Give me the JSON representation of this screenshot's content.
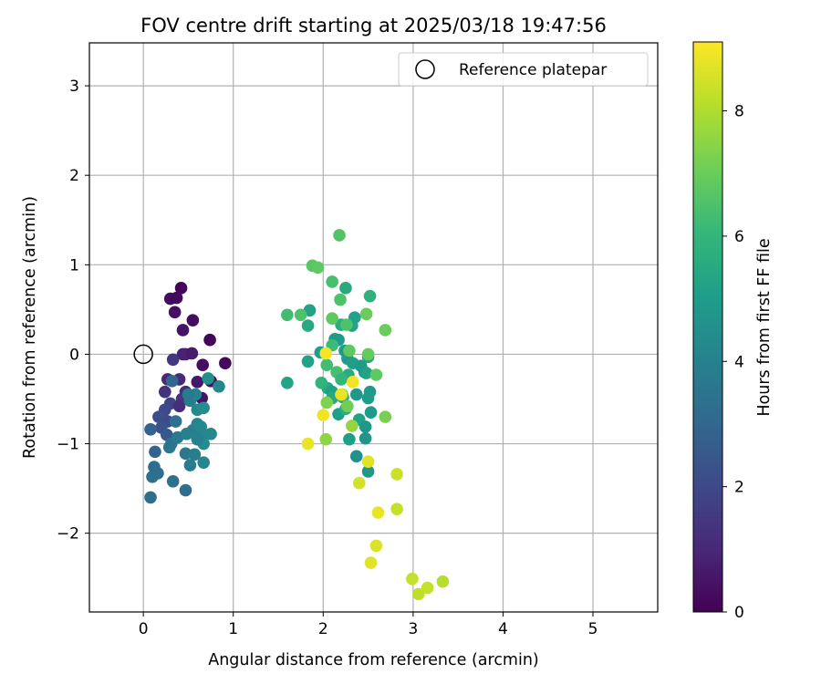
{
  "chart_data": {
    "type": "scatter",
    "title": "FOV centre drift starting at 2025/03/18 19:47:56",
    "xlabel": "Angular distance from reference (arcmin)",
    "ylabel": "Rotation from reference (arcmin)",
    "xlim": [
      -0.6,
      5.72
    ],
    "ylim": [
      -2.88,
      3.48
    ],
    "xticks": [
      0,
      1,
      2,
      3,
      4,
      5
    ],
    "yticks": [
      -2,
      -1,
      0,
      1,
      2,
      3
    ],
    "grid": true,
    "legend": {
      "position": "top-right",
      "label": "Reference platepar"
    },
    "reference_point": {
      "x": 0,
      "y": 0
    },
    "colorbar": {
      "label": "Hours from first FF file",
      "colormap": "viridis",
      "range": [
        0,
        9.1
      ],
      "ticks": [
        0,
        2,
        4,
        6,
        8
      ],
      "colors": [
        "#440154",
        "#482878",
        "#3e4a89",
        "#31688e",
        "#26828e",
        "#1f9e89",
        "#35b779",
        "#6ece58",
        "#b5de2b",
        "#fde725"
      ]
    },
    "series": [
      {
        "name": "FOV centre drift",
        "points": [
          {
            "x": 0.42,
            "y": 0.74,
            "h": 0.1
          },
          {
            "x": 0.3,
            "y": 0.62,
            "h": 0.3
          },
          {
            "x": 0.37,
            "y": 0.63,
            "h": 0.2
          },
          {
            "x": 0.35,
            "y": 0.47,
            "h": 0.4
          },
          {
            "x": 0.55,
            "y": 0.38,
            "h": 0.3
          },
          {
            "x": 0.44,
            "y": 0.27,
            "h": 0.5
          },
          {
            "x": 0.74,
            "y": 0.16,
            "h": 0.1
          },
          {
            "x": 0.44,
            "y": 0.0,
            "h": 0.8
          },
          {
            "x": 0.47,
            "y": 0.0,
            "h": 0.9
          },
          {
            "x": 0.54,
            "y": 0.01,
            "h": 0.7
          },
          {
            "x": 0.91,
            "y": -0.1,
            "h": 0.2
          },
          {
            "x": 0.66,
            "y": -0.12,
            "h": 0.3
          },
          {
            "x": 0.33,
            "y": -0.06,
            "h": 1.5
          },
          {
            "x": 0.27,
            "y": -0.28,
            "h": 1.0
          },
          {
            "x": 0.4,
            "y": -0.28,
            "h": 1.1
          },
          {
            "x": 0.6,
            "y": -0.31,
            "h": 0.6
          },
          {
            "x": 0.75,
            "y": -0.3,
            "h": 0.4
          },
          {
            "x": 0.24,
            "y": -0.42,
            "h": 1.3
          },
          {
            "x": 0.47,
            "y": -0.42,
            "h": 1.2
          },
          {
            "x": 0.65,
            "y": -0.49,
            "h": 0.5
          },
          {
            "x": 0.43,
            "y": -0.5,
            "h": 1.4
          },
          {
            "x": 0.3,
            "y": -0.55,
            "h": 1.8
          },
          {
            "x": 0.4,
            "y": -0.58,
            "h": 1.2
          },
          {
            "x": 0.24,
            "y": -0.62,
            "h": 2.0
          },
          {
            "x": 0.17,
            "y": -0.7,
            "h": 2.2
          },
          {
            "x": 0.27,
            "y": -0.75,
            "h": 2.1
          },
          {
            "x": 0.2,
            "y": -0.82,
            "h": 2.3
          },
          {
            "x": 0.08,
            "y": -0.84,
            "h": 2.8
          },
          {
            "x": 0.26,
            "y": -0.9,
            "h": 2.5
          },
          {
            "x": 0.32,
            "y": -0.3,
            "h": 3.0
          },
          {
            "x": 0.13,
            "y": -1.09,
            "h": 2.9
          },
          {
            "x": 0.12,
            "y": -1.26,
            "h": 3.2
          },
          {
            "x": 0.1,
            "y": -1.37,
            "h": 3.4
          },
          {
            "x": 0.16,
            "y": -1.33,
            "h": 3.3
          },
          {
            "x": 0.08,
            "y": -1.6,
            "h": 3.3
          },
          {
            "x": 0.33,
            "y": -1.42,
            "h": 3.4
          },
          {
            "x": 0.47,
            "y": -1.52,
            "h": 3.3
          },
          {
            "x": 0.47,
            "y": -1.11,
            "h": 3.6
          },
          {
            "x": 0.52,
            "y": -1.24,
            "h": 3.8
          },
          {
            "x": 0.57,
            "y": -1.12,
            "h": 3.9
          },
          {
            "x": 0.67,
            "y": -1.21,
            "h": 4.2
          },
          {
            "x": 0.29,
            "y": -1.04,
            "h": 3.6
          },
          {
            "x": 0.31,
            "y": -1.0,
            "h": 3.5
          },
          {
            "x": 0.38,
            "y": -0.93,
            "h": 3.7
          },
          {
            "x": 0.48,
            "y": -0.89,
            "h": 4.0
          },
          {
            "x": 0.55,
            "y": -0.85,
            "h": 3.9
          },
          {
            "x": 0.6,
            "y": -0.78,
            "h": 4.1
          },
          {
            "x": 0.64,
            "y": -0.81,
            "h": 4.3
          },
          {
            "x": 0.67,
            "y": -0.9,
            "h": 4.2
          },
          {
            "x": 0.75,
            "y": -0.89,
            "h": 4.3
          },
          {
            "x": 0.67,
            "y": -1.0,
            "h": 4.4
          },
          {
            "x": 0.6,
            "y": -0.95,
            "h": 4.0
          },
          {
            "x": 0.36,
            "y": -0.75,
            "h": 3.4
          },
          {
            "x": 0.52,
            "y": -0.52,
            "h": 3.8
          },
          {
            "x": 0.58,
            "y": -0.45,
            "h": 4.0
          },
          {
            "x": 0.5,
            "y": -0.45,
            "h": 3.7
          },
          {
            "x": 0.6,
            "y": -0.62,
            "h": 4.3
          },
          {
            "x": 0.67,
            "y": -0.6,
            "h": 4.5
          },
          {
            "x": 0.72,
            "y": -0.27,
            "h": 4.5
          },
          {
            "x": 0.84,
            "y": -0.36,
            "h": 4.2
          },
          {
            "x": 1.85,
            "y": 0.49,
            "h": 5.2
          },
          {
            "x": 1.83,
            "y": 0.32,
            "h": 5.5
          },
          {
            "x": 1.83,
            "y": -0.08,
            "h": 5.2
          },
          {
            "x": 1.6,
            "y": -0.32,
            "h": 5.3
          },
          {
            "x": 1.97,
            "y": 0.02,
            "h": 5.1
          },
          {
            "x": 2.05,
            "y": -0.38,
            "h": 5.5
          },
          {
            "x": 2.1,
            "y": -0.42,
            "h": 5.1
          },
          {
            "x": 2.13,
            "y": 0.17,
            "h": 5.0
          },
          {
            "x": 2.17,
            "y": 0.16,
            "h": 4.9
          },
          {
            "x": 2.2,
            "y": 0.33,
            "h": 5.6
          },
          {
            "x": 2.25,
            "y": 0.74,
            "h": 5.5
          },
          {
            "x": 2.32,
            "y": 0.32,
            "h": 5.3
          },
          {
            "x": 2.35,
            "y": 0.41,
            "h": 5.2
          },
          {
            "x": 2.52,
            "y": 0.65,
            "h": 5.8
          },
          {
            "x": 2.24,
            "y": 0.04,
            "h": 5.0
          },
          {
            "x": 2.27,
            "y": -0.05,
            "h": 4.9
          },
          {
            "x": 2.33,
            "y": -0.1,
            "h": 5.1
          },
          {
            "x": 2.42,
            "y": -0.13,
            "h": 5.0
          },
          {
            "x": 2.46,
            "y": -0.2,
            "h": 4.8
          },
          {
            "x": 2.5,
            "y": -0.03,
            "h": 5.4
          },
          {
            "x": 2.48,
            "y": -0.21,
            "h": 5.2
          },
          {
            "x": 2.52,
            "y": -0.42,
            "h": 4.9
          },
          {
            "x": 2.5,
            "y": -0.49,
            "h": 5.0
          },
          {
            "x": 2.37,
            "y": -0.45,
            "h": 4.8
          },
          {
            "x": 2.17,
            "y": -0.67,
            "h": 5.1
          },
          {
            "x": 2.25,
            "y": -0.61,
            "h": 5.6
          },
          {
            "x": 2.22,
            "y": -0.48,
            "h": 5.4
          },
          {
            "x": 2.4,
            "y": -0.73,
            "h": 5.2
          },
          {
            "x": 2.47,
            "y": -0.81,
            "h": 4.8
          },
          {
            "x": 2.53,
            "y": -0.65,
            "h": 4.9
          },
          {
            "x": 2.29,
            "y": -0.95,
            "h": 5.1
          },
          {
            "x": 2.37,
            "y": -1.14,
            "h": 4.6
          },
          {
            "x": 2.47,
            "y": -0.94,
            "h": 4.7
          },
          {
            "x": 2.5,
            "y": -1.31,
            "h": 4.8
          },
          {
            "x": 2.1,
            "y": -0.49,
            "h": 5.5
          },
          {
            "x": 1.98,
            "y": -0.32,
            "h": 5.9
          },
          {
            "x": 2.28,
            "y": -0.23,
            "h": 5.6
          },
          {
            "x": 1.6,
            "y": 0.44,
            "h": 6.3
          },
          {
            "x": 1.75,
            "y": 0.44,
            "h": 6.5
          },
          {
            "x": 1.88,
            "y": 0.99,
            "h": 6.7
          },
          {
            "x": 1.94,
            "y": 0.97,
            "h": 6.8
          },
          {
            "x": 2.1,
            "y": 0.81,
            "h": 6.4
          },
          {
            "x": 2.18,
            "y": 1.33,
            "h": 6.6
          },
          {
            "x": 2.19,
            "y": 0.61,
            "h": 6.5
          },
          {
            "x": 2.1,
            "y": 0.4,
            "h": 6.8
          },
          {
            "x": 2.26,
            "y": 0.33,
            "h": 6.5
          },
          {
            "x": 2.48,
            "y": 0.45,
            "h": 7.0
          },
          {
            "x": 2.69,
            "y": 0.27,
            "h": 7.0
          },
          {
            "x": 2.1,
            "y": 0.1,
            "h": 6.2
          },
          {
            "x": 2.29,
            "y": 0.04,
            "h": 6.8
          },
          {
            "x": 2.5,
            "y": 0.0,
            "h": 6.9
          },
          {
            "x": 2.04,
            "y": -0.12,
            "h": 6.3
          },
          {
            "x": 2.15,
            "y": -0.2,
            "h": 6.4
          },
          {
            "x": 2.2,
            "y": -0.28,
            "h": 6.0
          },
          {
            "x": 2.59,
            "y": -0.23,
            "h": 6.8
          },
          {
            "x": 2.21,
            "y": -0.45,
            "h": 6.9
          },
          {
            "x": 2.04,
            "y": -0.54,
            "h": 7.3
          },
          {
            "x": 2.27,
            "y": -0.58,
            "h": 7.1
          },
          {
            "x": 2.32,
            "y": -0.8,
            "h": 7.6
          },
          {
            "x": 2.69,
            "y": -0.7,
            "h": 7.2
          },
          {
            "x": 2.03,
            "y": -0.95,
            "h": 7.5
          },
          {
            "x": 2.03,
            "y": 0.01,
            "h": 9.0
          },
          {
            "x": 2.33,
            "y": -0.31,
            "h": 8.9
          },
          {
            "x": 2.2,
            "y": -0.45,
            "h": 8.8
          },
          {
            "x": 2.0,
            "y": -0.68,
            "h": 8.9
          },
          {
            "x": 1.83,
            "y": -1.0,
            "h": 8.8
          },
          {
            "x": 2.5,
            "y": -1.2,
            "h": 8.7
          },
          {
            "x": 2.4,
            "y": -1.44,
            "h": 8.5
          },
          {
            "x": 2.82,
            "y": -1.34,
            "h": 8.4
          },
          {
            "x": 2.82,
            "y": -1.73,
            "h": 8.3
          },
          {
            "x": 2.61,
            "y": -1.77,
            "h": 8.8
          },
          {
            "x": 2.59,
            "y": -2.14,
            "h": 8.6
          },
          {
            "x": 2.53,
            "y": -2.33,
            "h": 8.7
          },
          {
            "x": 2.99,
            "y": -2.51,
            "h": 8.3
          },
          {
            "x": 3.06,
            "y": -2.68,
            "h": 8.2
          },
          {
            "x": 3.16,
            "y": -2.61,
            "h": 8.3
          },
          {
            "x": 3.33,
            "y": -2.54,
            "h": 8.1
          }
        ]
      }
    ]
  }
}
